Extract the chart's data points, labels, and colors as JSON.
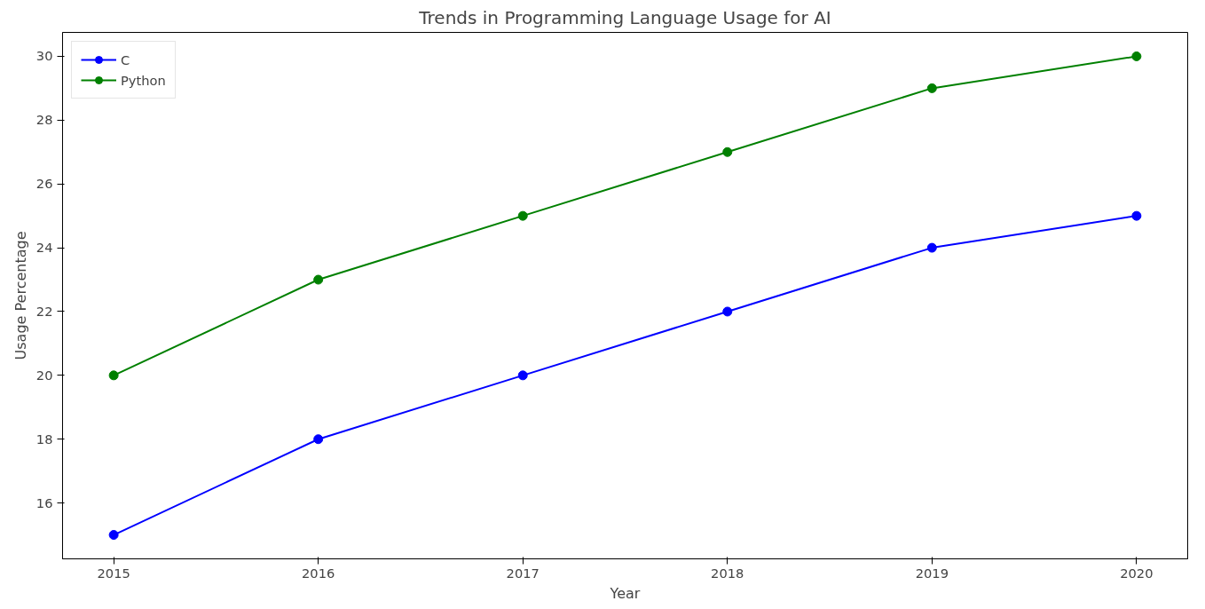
{
  "chart_data": {
    "type": "line",
    "title": "Trends in Programming Language Usage for AI",
    "xlabel": "Year",
    "ylabel": "Usage Percentage",
    "x": [
      2015,
      2016,
      2017,
      2018,
      2019,
      2020
    ],
    "series": [
      {
        "name": "C",
        "color": "#0000ff",
        "values": [
          15,
          18,
          20,
          22,
          24,
          25
        ]
      },
      {
        "name": "Python",
        "color": "#008000",
        "values": [
          20,
          23,
          25,
          27,
          29,
          30
        ]
      }
    ],
    "xlim": [
      2014.75,
      2020.25
    ],
    "xticks": [
      2015,
      2016,
      2017,
      2018,
      2019,
      2020
    ],
    "ylim": [
      14.25,
      30.75
    ],
    "yticks": [
      16,
      18,
      20,
      22,
      24,
      26,
      28,
      30
    ],
    "grid": false,
    "legend": "top left",
    "marker": "circle",
    "line_style": "solid"
  }
}
